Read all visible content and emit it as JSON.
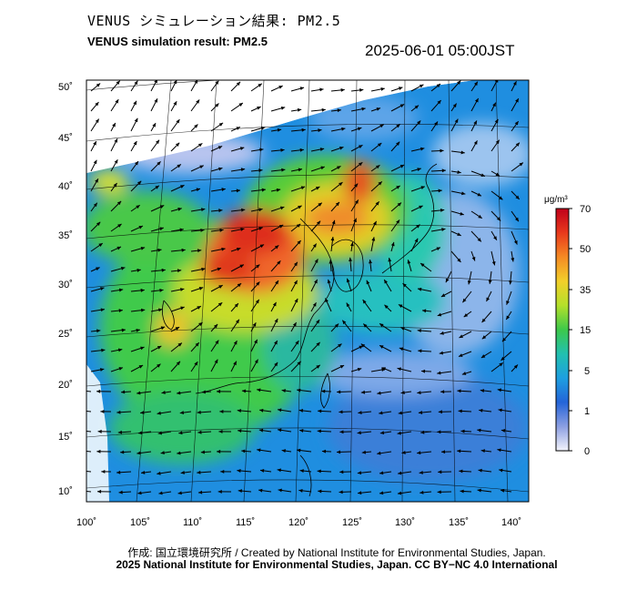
{
  "header": {
    "title_jp": "VENUS シミュレーション結果: PM2.5",
    "title_en": "VENUS simulation result: PM2.5",
    "timestamp": "2025-06-01 05:00JST"
  },
  "map": {
    "lon_range": [
      100,
      142
    ],
    "lat_range": [
      9,
      51
    ],
    "lon_ticks": [
      "100˚",
      "105˚",
      "110˚",
      "115˚",
      "120˚",
      "125˚",
      "130˚",
      "135˚",
      "140˚"
    ],
    "lat_ticks": [
      "50˚",
      "45˚",
      "40˚",
      "35˚",
      "30˚",
      "25˚",
      "20˚",
      "15˚",
      "10˚"
    ]
  },
  "colorbar": {
    "unit": "μg/m³",
    "levels": [
      "70",
      "50",
      "35",
      "15",
      "5",
      "1",
      "0"
    ],
    "colors": [
      "#d7191c",
      "#f46d43",
      "#fdae61",
      "#abdda4",
      "#3fc85a",
      "#22b5c8",
      "#2b83ba",
      "#6a7fd8",
      "#e6e8f5"
    ]
  },
  "footer": {
    "credit": "作成: 国立環境研究所 / Created by National Institute for Environmental Studies, Japan.",
    "license": "2025 National Institute for Environmental Studies, Japan. CC BY−NC 4.0 International"
  }
}
